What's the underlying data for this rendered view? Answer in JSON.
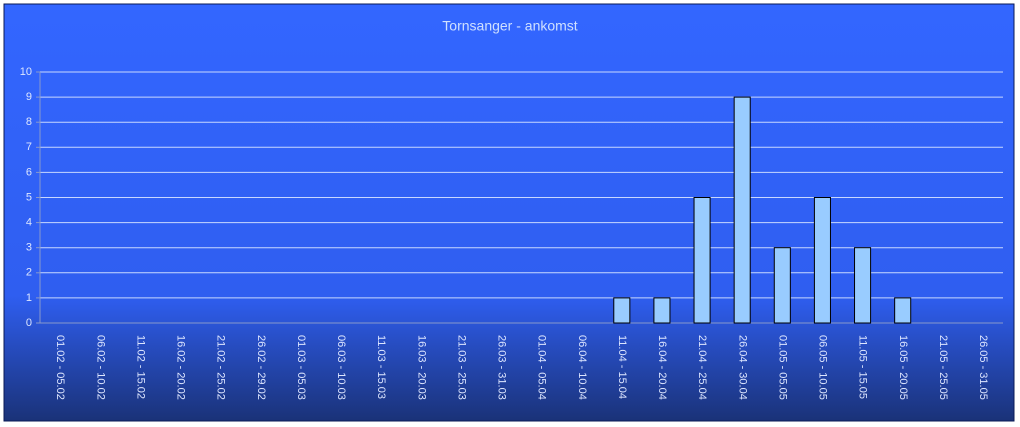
{
  "chart_data": {
    "type": "bar",
    "title": "Tornsanger - ankomst",
    "categories": [
      "01.02 - 05.02",
      "06.02 - 10.02",
      "11.02 - 15.02",
      "16.02 - 20.02",
      "21.02 - 25.02",
      "26.02 - 29.02",
      "01.03 - 05.03",
      "06.03 - 10.03",
      "11.03 - 15.03",
      "16.03 - 20.03",
      "21.03 - 25.03",
      "26.03 - 31.03",
      "01.04 - 05.04",
      "06.04 - 10.04",
      "11.04 - 15.04",
      "16.04 - 20.04",
      "21.04 - 25.04",
      "26.04 - 30.04",
      "01.05 - 05.05",
      "06.05 - 10.05",
      "11.05 - 15.05",
      "16.05 - 20.05",
      "21.05 - 25.05",
      "26.05 - 31.05"
    ],
    "values": [
      0,
      0,
      0,
      0,
      0,
      0,
      0,
      0,
      0,
      0,
      0,
      0,
      0,
      0,
      1,
      1,
      5,
      9,
      3,
      5,
      3,
      1,
      0,
      0
    ],
    "color": "#99ccff",
    "ylim": [
      0,
      10
    ],
    "yticks": [
      0,
      1,
      2,
      3,
      4,
      5,
      6,
      7,
      8,
      9,
      10
    ],
    "grid": true
  }
}
